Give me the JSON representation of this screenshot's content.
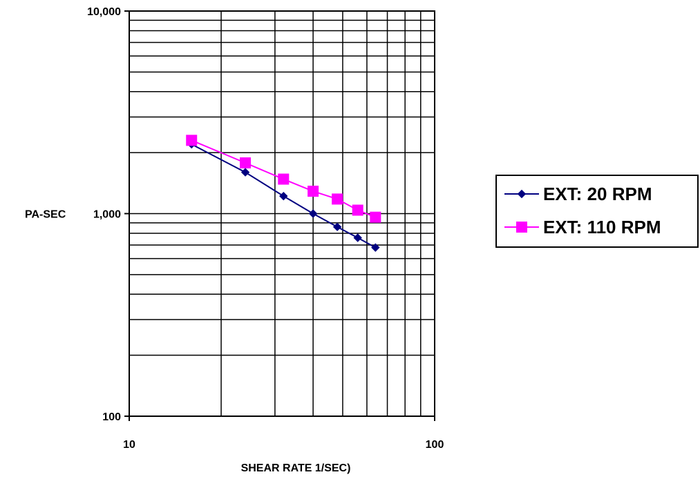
{
  "chart_data": {
    "type": "line",
    "xscale": "log",
    "yscale": "log",
    "xlim": [
      10,
      100
    ],
    "ylim": [
      100,
      10000
    ],
    "xticks": [
      "10",
      "100"
    ],
    "yticks": [
      "100",
      "1,000",
      "10,000"
    ],
    "xlabel": "SHEAR RATE 1/SEC)",
    "ylabel": "PA-SEC",
    "grid": true,
    "legend_position": "right",
    "series": [
      {
        "name": "EXT: 20 RPM",
        "color": "#000080",
        "marker": "diamond",
        "x": [
          16,
          24,
          32,
          40,
          48,
          56,
          64
        ],
        "y": [
          2200,
          1600,
          1220,
          1000,
          860,
          760,
          680
        ]
      },
      {
        "name": "EXT: 110 RPM",
        "color": "#FF00FF",
        "marker": "square",
        "x": [
          16,
          24,
          32,
          40,
          48,
          56,
          64
        ],
        "y": [
          2300,
          1780,
          1480,
          1290,
          1180,
          1040,
          960
        ]
      }
    ]
  }
}
